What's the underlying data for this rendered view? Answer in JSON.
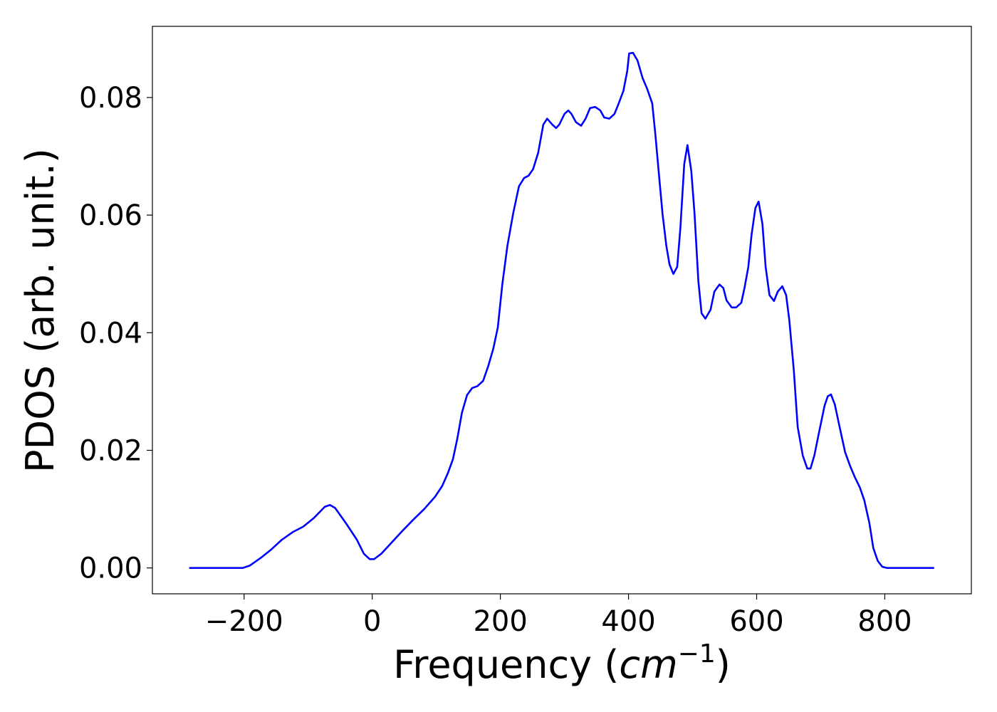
{
  "chart_data": {
    "type": "line",
    "xlabel": "Frequency (cm−1)",
    "ylabel": "PDOS (arb. unit.)",
    "xlim": [
      -343.1,
      935.1
    ],
    "ylim": [
      -0.0044,
      0.0921
    ],
    "xticks": [
      {
        "value": -200,
        "label": "−200"
      },
      0,
      200,
      400,
      600,
      800
    ],
    "yticks": [
      {
        "value": 0,
        "label": "0.00"
      },
      {
        "value": 0.02,
        "label": "0.02"
      },
      {
        "value": 0.04,
        "label": "0.04"
      },
      {
        "value": 0.06,
        "label": "0.06"
      },
      {
        "value": 0.08,
        "label": "0.08"
      }
    ],
    "grid": false,
    "series": [
      {
        "color": "#0000ff",
        "x": [
          -285.6,
          -202,
          -191,
          -174,
          -158,
          -141,
          -124,
          -108,
          -91,
          -74,
          -66,
          -58,
          -41,
          -24,
          -13,
          -4,
          3,
          14,
          31,
          48,
          64,
          81,
          98,
          109,
          118,
          126,
          133,
          140,
          148,
          156,
          164,
          173,
          181,
          189,
          196,
          203,
          211,
          220,
          229,
          237,
          244,
          251,
          259,
          267,
          273,
          281,
          287,
          292,
          300,
          306,
          311,
          318,
          326,
          333,
          340,
          348,
          356,
          362,
          370,
          378,
          384,
          392,
          398,
          401,
          407,
          414,
          422,
          429,
          437,
          442,
          448,
          453,
          459,
          464,
          470,
          476,
          481,
          487,
          492,
          498,
          503,
          509,
          514,
          520,
          528,
          534,
          542,
          548,
          553,
          561,
          568,
          576,
          581,
          587,
          592,
          598,
          603,
          609,
          614,
          620,
          627,
          633,
          640,
          646,
          651,
          658,
          664,
          672,
          679,
          684,
          690,
          698,
          706,
          711,
          716,
          722,
          729,
          738,
          746,
          753,
          761,
          768,
          776,
          782,
          789,
          796,
          803,
          877
        ],
        "values": [
          0,
          0,
          0.0004,
          0.0017,
          0.0031,
          0.0048,
          0.0061,
          0.007,
          0.0085,
          0.0104,
          0.0107,
          0.0102,
          0.0076,
          0.0048,
          0.0024,
          0.0015,
          0.0015,
          0.0024,
          0.0044,
          0.0064,
          0.0082,
          0.01,
          0.0121,
          0.0139,
          0.0161,
          0.0185,
          0.0221,
          0.0264,
          0.0294,
          0.0306,
          0.0309,
          0.0318,
          0.0343,
          0.0373,
          0.0409,
          0.0482,
          0.0548,
          0.0603,
          0.0649,
          0.0663,
          0.0667,
          0.0678,
          0.0706,
          0.0754,
          0.0764,
          0.0754,
          0.0748,
          0.0754,
          0.0772,
          0.0778,
          0.0772,
          0.0758,
          0.0752,
          0.0764,
          0.0782,
          0.0784,
          0.0778,
          0.0766,
          0.0764,
          0.0772,
          0.0788,
          0.0811,
          0.0845,
          0.0875,
          0.0876,
          0.0863,
          0.0833,
          0.0815,
          0.079,
          0.0736,
          0.0663,
          0.0603,
          0.0548,
          0.0516,
          0.05,
          0.0512,
          0.0579,
          0.0687,
          0.0719,
          0.0675,
          0.0603,
          0.0488,
          0.0433,
          0.0424,
          0.0439,
          0.047,
          0.0482,
          0.0476,
          0.0455,
          0.0443,
          0.0443,
          0.0451,
          0.0476,
          0.0512,
          0.0566,
          0.0612,
          0.0623,
          0.0585,
          0.0512,
          0.0464,
          0.0454,
          0.047,
          0.0479,
          0.0464,
          0.0421,
          0.0336,
          0.024,
          0.0191,
          0.0169,
          0.0169,
          0.0191,
          0.0234,
          0.0276,
          0.0292,
          0.0295,
          0.0278,
          0.0242,
          0.0197,
          0.0173,
          0.0155,
          0.0137,
          0.0115,
          0.0076,
          0.0034,
          0.0012,
          0.0002,
          0,
          0
        ]
      }
    ]
  }
}
